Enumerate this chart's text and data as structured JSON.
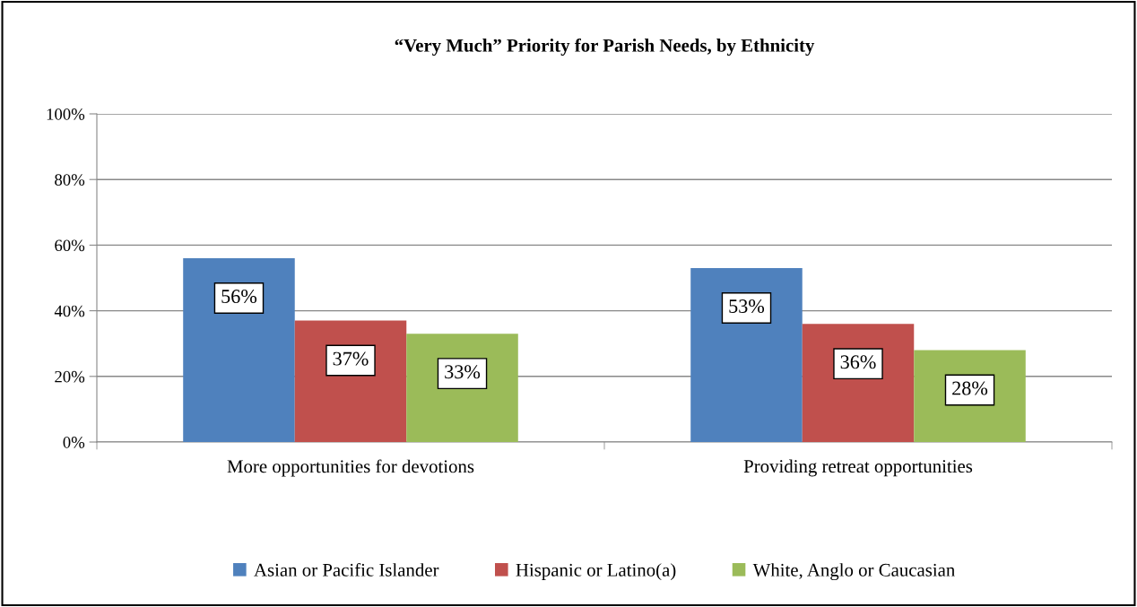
{
  "chart_data": {
    "type": "bar",
    "title": "“Very Much” Priority for Parish Needs, by Ethnicity",
    "categories": [
      "More opportunities for devotions",
      "Providing retreat opportunities"
    ],
    "series": [
      {
        "name": "Asian or Pacific Islander",
        "color": "#4f81bd",
        "values": [
          56,
          53
        ],
        "value_labels": [
          "56%",
          "53%"
        ]
      },
      {
        "name": "Hispanic or Latino(a)",
        "color": "#c0504d",
        "values": [
          37,
          36
        ],
        "value_labels": [
          "37%",
          "36%"
        ]
      },
      {
        "name": "White, Anglo or Caucasian",
        "color": "#9bbb59",
        "values": [
          33,
          28
        ],
        "value_labels": [
          "33%",
          "28%"
        ]
      }
    ],
    "ylim": [
      0,
      100
    ],
    "yticks": [
      {
        "value": 0,
        "label": "0%"
      },
      {
        "value": 20,
        "label": "20%"
      },
      {
        "value": 40,
        "label": "40%"
      },
      {
        "value": 60,
        "label": "60%"
      },
      {
        "value": 80,
        "label": "80%"
      },
      {
        "value": 100,
        "label": "100%"
      }
    ],
    "grid": "y",
    "legend": "bottom"
  }
}
